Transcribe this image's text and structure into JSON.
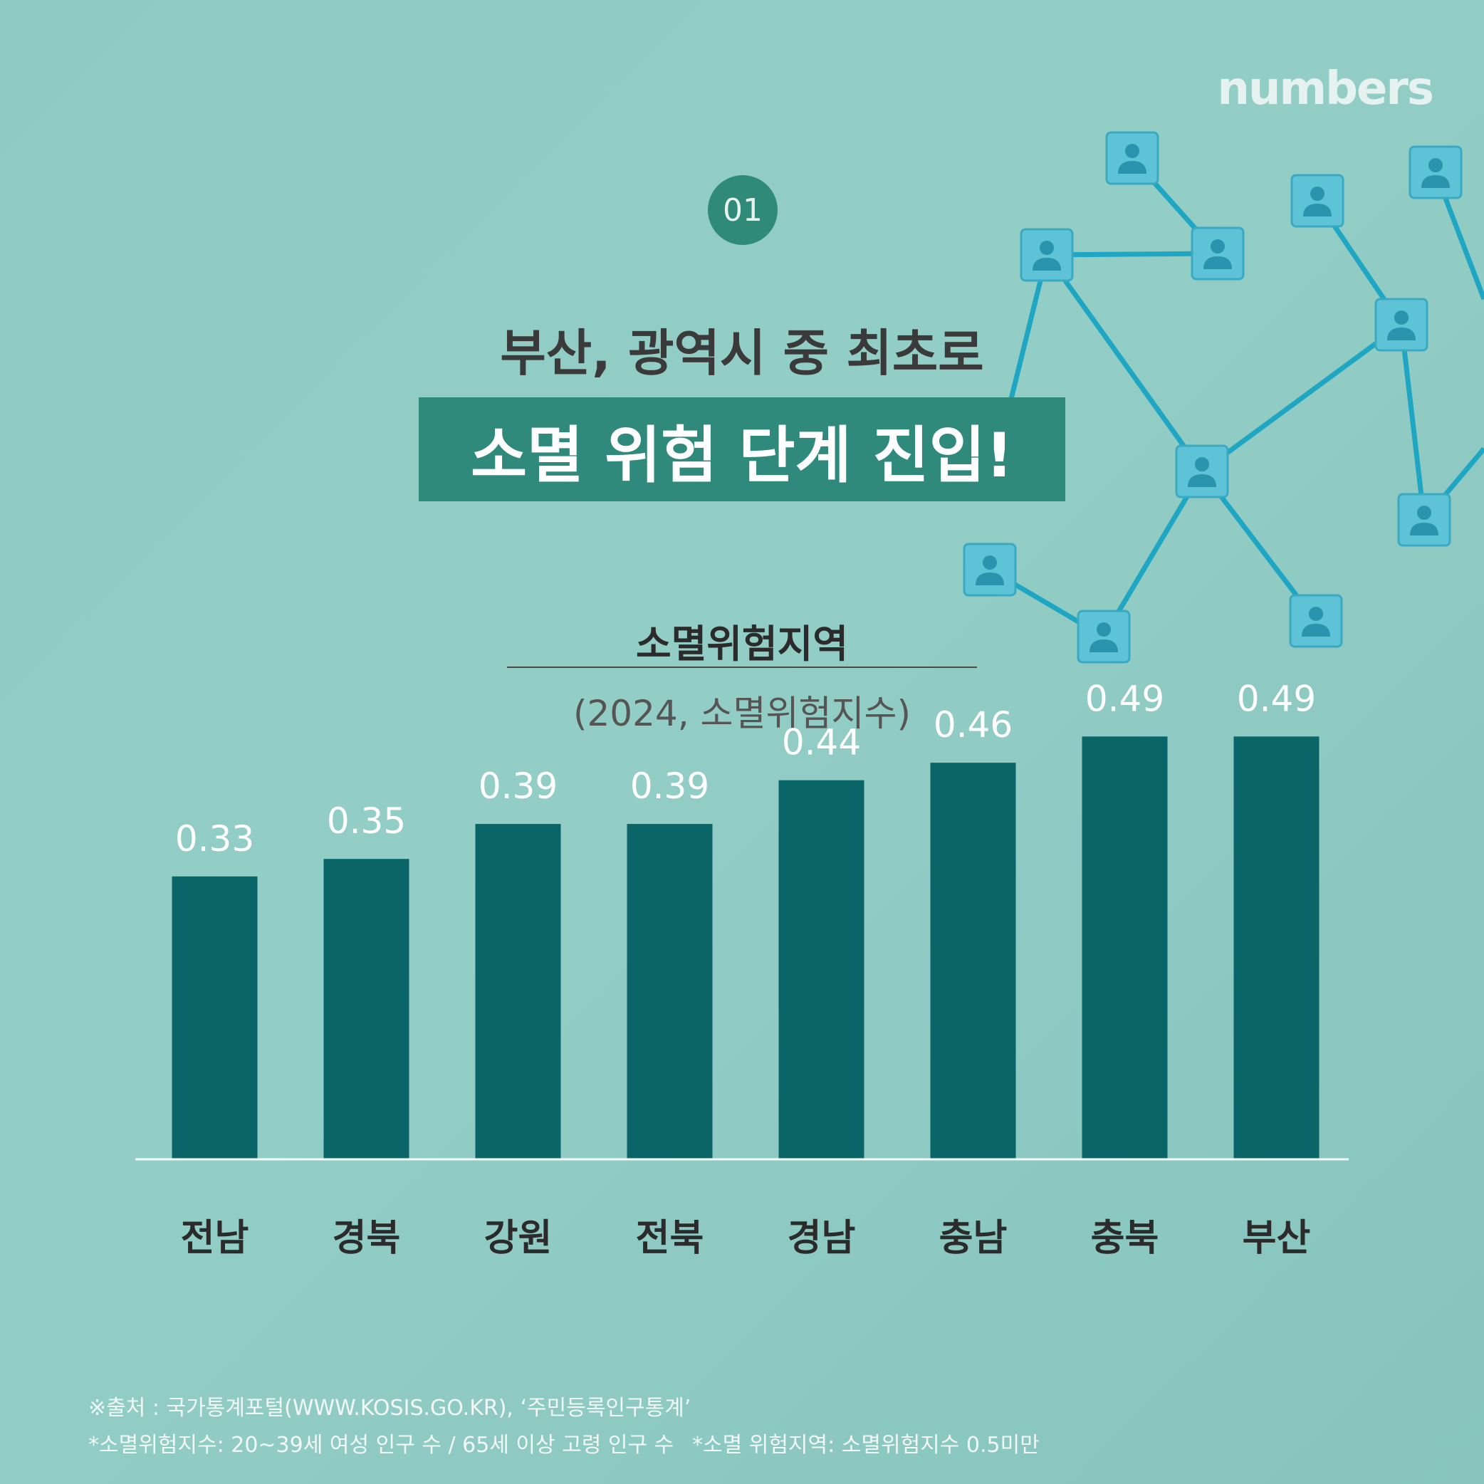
{
  "brand": {
    "logo_text": "numbers"
  },
  "header": {
    "badge": "01",
    "subtitle": "부산, 광역시 중 최초로",
    "title": "소멸 위험 단계 진입!"
  },
  "chart_heading": {
    "title": "소멸위험지역",
    "subtitle": "(2024,  소멸위험지수)"
  },
  "colors": {
    "bar": "#0a6569",
    "label": "#ffffff",
    "category": "#2b2b2b",
    "title_box": "#2f8a7c"
  },
  "chart_data": {
    "type": "bar",
    "title": "소멸위험지역",
    "subtitle": "(2024,  소멸위험지수)",
    "categories": [
      "전남",
      "경북",
      "강원",
      "전북",
      "경남",
      "충남",
      "충북",
      "부산"
    ],
    "values": [
      0.33,
      0.35,
      0.39,
      0.39,
      0.44,
      0.46,
      0.49,
      0.49
    ],
    "data_labels": [
      "0.33",
      "0.35",
      "0.39",
      "0.39",
      "0.44",
      "0.46",
      "0.49",
      "0.49"
    ],
    "xlabel": "",
    "ylabel": "",
    "ylim": [
      0,
      0.6
    ],
    "grid": false,
    "legend": "none"
  },
  "footer": {
    "source": "※출처 : 국가통계포털(WWW.KOSIS.GO.KR), ‘주민등록인구통계’",
    "note1": "*소멸위험지수: 20~39세 여성 인구 수 / 65세 이상 고령 인구 수",
    "note2": "*소멸 위험지역:  소멸위험지수 0.5미만"
  }
}
